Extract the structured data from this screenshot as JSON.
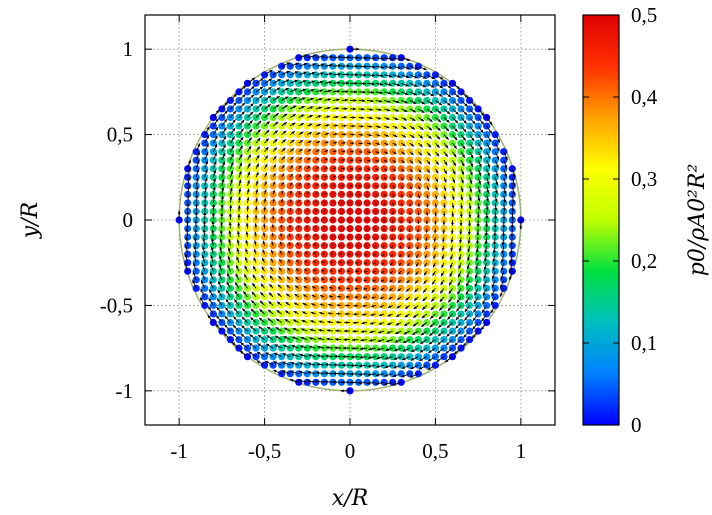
{
  "chart_data": {
    "type": "scatter",
    "subtype": "colormap-particle-field-with-arrows",
    "x_axis": {
      "label": "x/R",
      "range": [
        -1.2,
        1.2
      ],
      "ticks": [
        {
          "value": -1,
          "label": "-1"
        },
        {
          "value": -0.5,
          "label": "-0,5"
        },
        {
          "value": 0,
          "label": "0"
        },
        {
          "value": 0.5,
          "label": "0,5"
        },
        {
          "value": 1,
          "label": "1"
        }
      ]
    },
    "y_axis": {
      "label": "y/R",
      "range": [
        -1.2,
        1.2
      ],
      "ticks": [
        {
          "value": -1,
          "label": "-1"
        },
        {
          "value": -0.5,
          "label": "-0,5"
        },
        {
          "value": 0,
          "label": "0"
        },
        {
          "value": 0.5,
          "label": "0,5"
        },
        {
          "value": 1,
          "label": "1"
        }
      ]
    },
    "grid": true,
    "grid_style": "dotted",
    "colorbar": {
      "label": "p0/ρA0²R²",
      "range": [
        0,
        0.5
      ],
      "ticks": [
        {
          "value": 0,
          "label": "0"
        },
        {
          "value": 0.1,
          "label": "0,1"
        },
        {
          "value": 0.2,
          "label": "0,2"
        },
        {
          "value": 0.3,
          "label": "0,3"
        },
        {
          "value": 0.4,
          "label": "0,4"
        },
        {
          "value": 0.5,
          "label": "0,5"
        }
      ],
      "colormap": [
        "#0000ff",
        "#0080ff",
        "#00c0c0",
        "#00e040",
        "#c0ff00",
        "#ffff00",
        "#ffa000",
        "#ff3000",
        "#e00000"
      ]
    },
    "particles": {
      "domain": "circle",
      "radius": 1.0,
      "spacing": 0.05,
      "value_at_center": 0.5,
      "value_at_edge": 0.0,
      "value_profile": "p0 = 0.5 * (1 - r^2)",
      "marker": "filled circle",
      "velocity_arrows": "black, tangential rotation, magnitude proportional to r"
    },
    "boundary_circle": {
      "radius": 1.0,
      "color": "#a0b070"
    }
  }
}
